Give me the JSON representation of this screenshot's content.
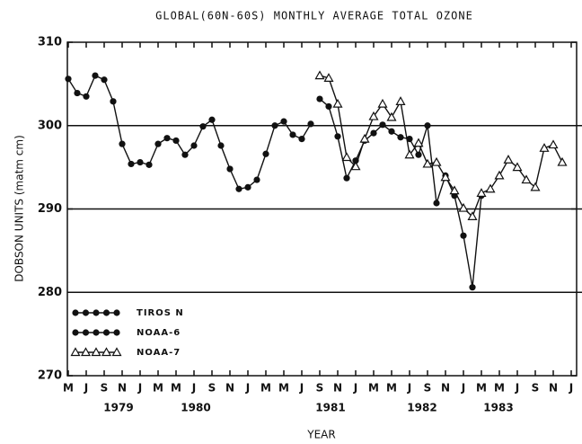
{
  "chart_data": {
    "type": "line",
    "title": "GLOBAL(60N-60S) MONTHLY AVERAGE TOTAL OZONE",
    "y_label": "DOBSON UNITS (matm cm)",
    "x_label": "YEAR",
    "categories": [
      "M",
      "J",
      "S",
      "N",
      "J",
      "M",
      "M",
      "J",
      "S",
      "N",
      "J",
      "M",
      "M",
      "J",
      "S",
      "N",
      "J",
      "M",
      "M",
      "J",
      "S",
      "N",
      "J",
      "M",
      "M",
      "J",
      "S",
      "N",
      "J"
    ],
    "year_labels": [
      "1979",
      "1980",
      "1981",
      "1982",
      "1983"
    ],
    "xlim": [
      -0.05,
      28.3
    ],
    "ylim": [
      270,
      310
    ],
    "yticks": [
      270,
      280,
      290,
      300,
      310
    ],
    "grid": true,
    "legend": "lower left",
    "series": [
      {
        "name": "TIROS N",
        "color": "#111111",
        "marker": "circle",
        "x": [
          0,
          0.5,
          1,
          1.5,
          2,
          2.5,
          3,
          3.5,
          4,
          4.5,
          5,
          5.5,
          6,
          6.5,
          7,
          7.5,
          8,
          8.5,
          9,
          9.5,
          10,
          10.5,
          11,
          11.5,
          12,
          12.5,
          13,
          13.5
        ],
        "values": [
          305.6,
          303.9,
          303.5,
          306.0,
          305.5,
          302.9,
          297.8,
          295.4,
          295.6,
          295.3,
          297.8,
          298.5,
          298.2,
          296.5,
          297.6,
          299.9,
          300.7,
          297.6,
          294.8,
          292.4,
          292.6,
          293.5,
          296.6,
          300.0,
          300.5,
          298.9,
          298.4,
          300.2
        ]
      },
      {
        "name": "NOAA-6",
        "color": "#111111",
        "marker": "circle",
        "x": [
          14,
          14.5,
          15,
          15.5,
          16,
          16.5,
          17,
          17.5,
          18,
          18.5,
          19,
          19.5,
          20,
          20.5,
          21,
          21.5,
          22,
          22.5,
          23
        ],
        "values": [
          303.2,
          302.3,
          298.7,
          293.7,
          295.8,
          298.2,
          299.1,
          300.1,
          299.3,
          298.6,
          298.4,
          296.5,
          300.0,
          290.7,
          294.0,
          291.6,
          286.8,
          280.6,
          291.6
        ]
      },
      {
        "name": "NOAA-7",
        "color": "#111111",
        "marker": "triangle",
        "x": [
          14,
          14.5,
          15,
          15.5,
          16,
          16.5,
          17,
          17.5,
          18,
          18.5,
          19,
          19.5,
          20,
          20.5,
          21,
          21.5,
          22,
          22.5,
          23,
          23.5,
          24,
          24.5,
          25,
          25.5,
          26,
          26.5,
          27,
          27.5
        ],
        "values": [
          306.0,
          305.7,
          302.6,
          296.2,
          295.1,
          298.4,
          301.1,
          302.6,
          301.0,
          302.9,
          296.5,
          297.9,
          295.4,
          295.6,
          293.8,
          292.2,
          290.1,
          289.1,
          291.9,
          292.4,
          294.0,
          295.9,
          295.0,
          293.5,
          292.6,
          297.3,
          297.7,
          295.6
        ]
      }
    ]
  }
}
